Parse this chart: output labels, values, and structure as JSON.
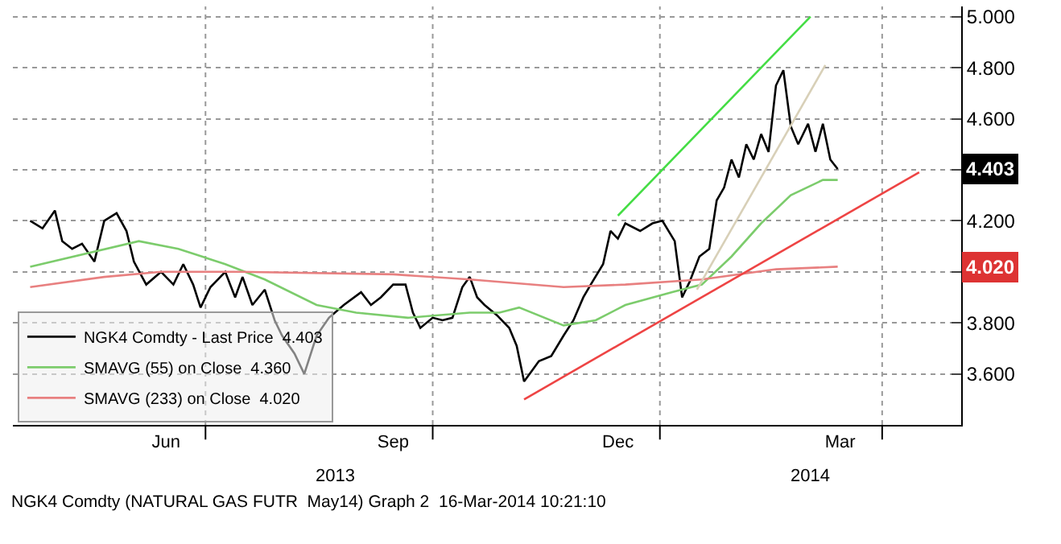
{
  "chart_data": {
    "type": "line",
    "series": [
      {
        "name": "NGK4 Comdty - Last Price  4.403",
        "color": "#000000",
        "x": [
          "2013-04-21",
          "2013-04-26",
          "2013-05-01",
          "2013-05-04",
          "2013-05-08",
          "2013-05-12",
          "2013-05-17",
          "2013-05-21",
          "2013-05-26",
          "2013-05-30",
          "2013-06-02",
          "2013-06-07",
          "2013-06-13",
          "2013-06-18",
          "2013-06-22",
          "2013-06-26",
          "2013-06-29",
          "2013-07-03",
          "2013-07-09",
          "2013-07-13",
          "2013-07-16",
          "2013-07-20",
          "2013-07-25",
          "2013-07-29",
          "2013-08-01",
          "2013-08-06",
          "2013-08-10",
          "2013-08-15",
          "2013-08-20",
          "2013-08-26",
          "2013-09-02",
          "2013-09-06",
          "2013-09-10",
          "2013-09-15",
          "2013-09-20",
          "2013-09-23",
          "2013-09-26",
          "2013-10-01",
          "2013-10-05",
          "2013-10-09",
          "2013-10-13",
          "2013-10-16",
          "2013-10-19",
          "2013-10-22",
          "2013-10-27",
          "2013-11-01",
          "2013-11-04",
          "2013-11-07",
          "2013-11-10",
          "2013-11-13",
          "2013-11-18",
          "2013-11-23",
          "2013-11-27",
          "2013-12-01",
          "2013-12-04",
          "2013-12-09",
          "2013-12-12",
          "2013-12-15",
          "2013-12-18",
          "2013-12-24",
          "2013-12-29",
          "2014-01-02",
          "2014-01-07",
          "2014-01-10",
          "2014-01-13",
          "2014-01-17",
          "2014-01-21",
          "2014-01-24",
          "2014-01-27",
          "2014-01-30",
          "2014-02-02",
          "2014-02-05",
          "2014-02-08",
          "2014-02-11",
          "2014-02-14",
          "2014-02-17",
          "2014-02-20",
          "2014-02-23",
          "2014-02-26",
          "2014-03-02",
          "2014-03-05",
          "2014-03-08",
          "2014-03-11",
          "2014-03-14"
        ],
        "values": [
          4.2,
          4.17,
          4.24,
          4.12,
          4.09,
          4.11,
          4.04,
          4.2,
          4.23,
          4.16,
          4.04,
          3.95,
          4.0,
          3.95,
          4.03,
          3.95,
          3.86,
          3.94,
          4.0,
          3.9,
          3.98,
          3.87,
          3.93,
          3.81,
          3.75,
          3.68,
          3.6,
          3.75,
          3.82,
          3.87,
          3.92,
          3.87,
          3.9,
          3.95,
          3.95,
          3.84,
          3.78,
          3.82,
          3.81,
          3.82,
          3.94,
          3.98,
          3.9,
          3.87,
          3.83,
          3.78,
          3.71,
          3.57,
          3.61,
          3.65,
          3.67,
          3.75,
          3.81,
          3.9,
          3.95,
          4.03,
          4.16,
          4.13,
          4.19,
          4.16,
          4.19,
          4.2,
          4.12,
          3.9,
          3.96,
          4.06,
          4.09,
          4.28,
          4.33,
          4.44,
          4.37,
          4.5,
          4.44,
          4.54,
          4.47,
          4.73,
          4.79,
          4.57,
          4.5,
          4.58,
          4.47,
          4.58,
          4.44,
          4.403
        ]
      },
      {
        "name": "SMAVG (55) on Close  4.360",
        "color": "#7ccc6c",
        "x": [
          "2013-04-21",
          "2013-06-04",
          "2013-06-20",
          "2013-07-09",
          "2013-07-25",
          "2013-08-15",
          "2013-08-31",
          "2013-09-21",
          "2013-10-16",
          "2013-10-28",
          "2013-11-05",
          "2013-11-23",
          "2013-12-06",
          "2013-12-18",
          "2014-01-06",
          "2014-01-18",
          "2014-01-30",
          "2014-02-11",
          "2014-02-23",
          "2014-03-08",
          "2014-03-14"
        ],
        "values": [
          4.02,
          4.12,
          4.09,
          4.03,
          3.97,
          3.87,
          3.84,
          3.82,
          3.84,
          3.84,
          3.86,
          3.79,
          3.81,
          3.87,
          3.92,
          3.95,
          4.06,
          4.19,
          4.3,
          4.36,
          4.36
        ]
      },
      {
        "name": "SMAVG (233) on Close  4.020",
        "color": "#e88080",
        "x": [
          "2013-04-21",
          "2013-05-21",
          "2013-06-13",
          "2013-07-15",
          "2013-09-15",
          "2013-10-16",
          "2013-11-23",
          "2013-12-18",
          "2014-01-18",
          "2014-02-17",
          "2014-03-14"
        ],
        "values": [
          3.94,
          3.98,
          4.0,
          4.0,
          3.99,
          3.97,
          3.94,
          3.95,
          3.97,
          4.01,
          4.02
        ]
      },
      {
        "color": "#44dd44",
        "x": [
          "2013-12-15",
          "2014-03-03"
        ],
        "values": [
          4.22,
          5.0
        ]
      },
      {
        "color": "#ee4444",
        "x": [
          "2013-11-07",
          "2014-04-16"
        ],
        "values": [
          3.5,
          4.39
        ]
      },
      {
        "color": "#d8d0b8",
        "x": [
          "2014-01-16",
          "2014-03-09"
        ],
        "values": [
          3.93,
          4.81
        ]
      }
    ],
    "xlim": [
      "2013-04-14",
      "2014-05-03"
    ],
    "xticks": [
      {
        "value": "2013-06-15",
        "label": "Jun"
      },
      {
        "value": "2013-09-15",
        "label": "Sep"
      },
      {
        "value": "2013-12-15",
        "label": "Dec"
      },
      {
        "value": "2014-03-15",
        "label": "Mar"
      },
      {
        "value": "2013-07-01",
        "label": null
      },
      {
        "value": "2013-10-01",
        "label": null
      },
      {
        "value": "2014-01-01",
        "label": null
      },
      {
        "value": "2014-04-01",
        "label": null
      }
    ],
    "ylim": [
      3.4,
      5.04
    ],
    "yticks": [
      {
        "value": 3.6,
        "label": "3.600"
      },
      {
        "value": 3.8,
        "label": "3.800"
      },
      {
        "value": 4.0,
        "label": null
      },
      {
        "value": 4.2,
        "label": "4.200"
      },
      {
        "value": 4.4,
        "label": null
      },
      {
        "value": 4.6,
        "label": "4.600"
      },
      {
        "value": 4.8,
        "label": "4.800"
      },
      {
        "value": 5.0,
        "label": "5.000"
      }
    ],
    "grid": true,
    "legend": "bottom left",
    "annotations": [
      "2013",
      "2014",
      "NGK4 Comdty (NATURAL GAS FUTR  May14) Graph 2  16-Mar-2014 10:21:10",
      "4.403",
      "4.020"
    ]
  }
}
